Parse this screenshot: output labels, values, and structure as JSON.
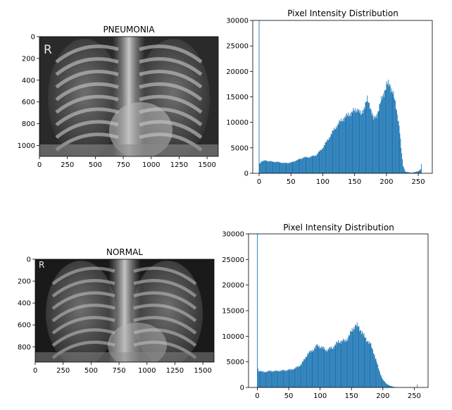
{
  "chart_data": [
    {
      "type": "image",
      "title": "PNEUMONIA",
      "xlim": [
        0,
        1600
      ],
      "ylim": [
        1100,
        0
      ],
      "xticks": [
        0,
        250,
        500,
        750,
        1000,
        1250,
        1500
      ],
      "yticks": [
        0,
        200,
        400,
        600,
        800,
        1000
      ],
      "corner_marker": "R",
      "image_width": 1600,
      "image_height": 1100
    },
    {
      "type": "bar",
      "title": "Pixel Intensity Distribution",
      "xlim": [
        -10,
        272
      ],
      "ylim": [
        0,
        30000
      ],
      "xticks": [
        0,
        50,
        100,
        150,
        200,
        250
      ],
      "yticks": [
        0,
        5000,
        10000,
        15000,
        20000,
        25000,
        30000
      ],
      "bar_color": "#1f77b4",
      "spike_at_zero": 30000,
      "spike_at_255": 1800,
      "curve": [
        [
          0,
          1700
        ],
        [
          3,
          2300
        ],
        [
          10,
          2500
        ],
        [
          20,
          2300
        ],
        [
          30,
          2200
        ],
        [
          40,
          2000
        ],
        [
          50,
          2100
        ],
        [
          60,
          2600
        ],
        [
          70,
          3100
        ],
        [
          80,
          3200
        ],
        [
          90,
          3600
        ],
        [
          100,
          5000
        ],
        [
          110,
          7000
        ],
        [
          120,
          9000
        ],
        [
          130,
          10500
        ],
        [
          140,
          11500
        ],
        [
          150,
          12300
        ],
        [
          155,
          12700
        ],
        [
          160,
          11400
        ],
        [
          165,
          13000
        ],
        [
          170,
          14400
        ],
        [
          175,
          13000
        ],
        [
          180,
          10500
        ],
        [
          185,
          11500
        ],
        [
          190,
          13500
        ],
        [
          195,
          15500
        ],
        [
          200,
          17300
        ],
        [
          205,
          17500
        ],
        [
          210,
          16000
        ],
        [
          215,
          13000
        ],
        [
          220,
          9500
        ],
        [
          223,
          5000
        ],
        [
          226,
          1500
        ],
        [
          230,
          300
        ],
        [
          240,
          100
        ],
        [
          250,
          400
        ],
        [
          254,
          800
        ]
      ]
    },
    {
      "type": "image",
      "title": "NORMAL",
      "xlim": [
        0,
        1600
      ],
      "ylim": [
        940,
        0
      ],
      "xticks": [
        0,
        250,
        500,
        750,
        1000,
        1250,
        1500
      ],
      "yticks": [
        0,
        200,
        400,
        600,
        800
      ],
      "corner_marker": "R",
      "image_width": 1600,
      "image_height": 940
    },
    {
      "type": "bar",
      "title": "Pixel Intensity Distribution",
      "xlim": [
        -14,
        272
      ],
      "ylim": [
        0,
        30000
      ],
      "xticks": [
        0,
        50,
        100,
        150,
        200,
        250
      ],
      "yticks": [
        0,
        5000,
        10000,
        15000,
        20000,
        25000,
        30000
      ],
      "bar_color": "#1f77b4",
      "spike_at_zero": 30000,
      "spike_at_255": 600,
      "curve": [
        [
          0,
          4000
        ],
        [
          2,
          3300
        ],
        [
          10,
          3000
        ],
        [
          20,
          3200
        ],
        [
          30,
          3200
        ],
        [
          40,
          3300
        ],
        [
          50,
          3400
        ],
        [
          60,
          3700
        ],
        [
          70,
          4500
        ],
        [
          80,
          6500
        ],
        [
          90,
          7500
        ],
        [
          95,
          8200
        ],
        [
          100,
          8000
        ],
        [
          110,
          7300
        ],
        [
          120,
          7800
        ],
        [
          130,
          9000
        ],
        [
          140,
          9100
        ],
        [
          145,
          9800
        ],
        [
          150,
          11000
        ],
        [
          155,
          12000
        ],
        [
          160,
          12000
        ],
        [
          165,
          11200
        ],
        [
          170,
          10000
        ],
        [
          175,
          9200
        ],
        [
          180,
          8500
        ],
        [
          185,
          7000
        ],
        [
          190,
          5000
        ],
        [
          195,
          3000
        ],
        [
          200,
          1500
        ],
        [
          205,
          800
        ],
        [
          210,
          400
        ],
        [
          215,
          200
        ],
        [
          220,
          50
        ],
        [
          230,
          0
        ],
        [
          250,
          0
        ]
      ]
    }
  ]
}
